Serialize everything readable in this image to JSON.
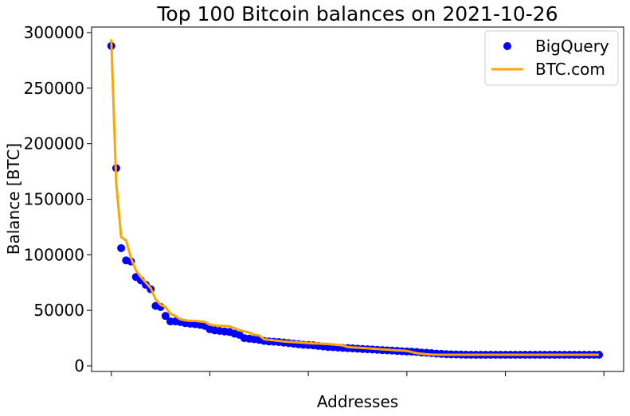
{
  "colors": {
    "bigquery": "#0000ff",
    "btc": "#ffa500",
    "axis": "#000000",
    "background": "#ffffff"
  },
  "chart_data": {
    "type": "scatter",
    "title": "Top 100 Bitcoin balances on 2021-10-26",
    "xlabel": "Addresses",
    "ylabel": "Balance [BTC]",
    "xlim": [
      -4,
      104
    ],
    "ylim": [
      -5000,
      305000
    ],
    "y_ticks": [
      0,
      50000,
      100000,
      150000,
      200000,
      250000,
      300000
    ],
    "y_tick_labels": [
      "0",
      "50000",
      "100000",
      "150000",
      "200000",
      "250000",
      "300000"
    ],
    "x_ticks": [
      0,
      20,
      40,
      60,
      80,
      100
    ],
    "x_tick_labels_visible": false,
    "legend": {
      "position": "top-right",
      "entries": [
        {
          "label": "BigQuery",
          "marker": "circle",
          "color": "#0000ff"
        },
        {
          "label": "BTC.com",
          "marker": "line",
          "color": "#ffa500"
        }
      ]
    },
    "series": [
      {
        "name": "BigQuery",
        "style": "points",
        "x": [
          0,
          1,
          2,
          3,
          4,
          5,
          6,
          7,
          8,
          9,
          10,
          11,
          12,
          13,
          14,
          15,
          16,
          17,
          18,
          19,
          20,
          21,
          22,
          23,
          24,
          25,
          26,
          27,
          28,
          29,
          30,
          31,
          32,
          33,
          34,
          35,
          36,
          37,
          38,
          39,
          40,
          41,
          42,
          43,
          44,
          45,
          46,
          47,
          48,
          49,
          50,
          51,
          52,
          53,
          54,
          55,
          56,
          57,
          58,
          59,
          60,
          61,
          62,
          63,
          64,
          65,
          66,
          67,
          68,
          69,
          70,
          71,
          72,
          73,
          74,
          75,
          76,
          77,
          78,
          79,
          80,
          81,
          82,
          83,
          84,
          85,
          86,
          87,
          88,
          89,
          90,
          91,
          92,
          93,
          94,
          95,
          96,
          97,
          98,
          99
        ],
        "values": [
          288000,
          178000,
          106000,
          95000,
          94000,
          80000,
          77000,
          73000,
          69000,
          54000,
          53000,
          45000,
          40000,
          40000,
          39500,
          38500,
          38000,
          37500,
          37000,
          36000,
          33000,
          32000,
          31500,
          31000,
          30500,
          29000,
          28000,
          25000,
          24500,
          24000,
          23500,
          22500,
          22000,
          21800,
          21500,
          21000,
          20500,
          20000,
          19500,
          19000,
          18800,
          18500,
          18000,
          17500,
          17000,
          16800,
          16500,
          16200,
          16000,
          15800,
          15500,
          15200,
          15000,
          14800,
          14500,
          14200,
          14000,
          13800,
          13500,
          13200,
          13000,
          12800,
          12500,
          12000,
          11800,
          11500,
          11000,
          10800,
          10600,
          10400,
          10300,
          10200,
          10100,
          10050,
          10000,
          10000,
          10000,
          10000,
          10000,
          10000,
          10000,
          10000,
          10000,
          10000,
          10000,
          10000,
          10000,
          10000,
          10000,
          10000,
          10000,
          10000,
          10000,
          10000,
          10000,
          10000,
          10000,
          10000,
          10000,
          10000
        ]
      },
      {
        "name": "BTC.com",
        "style": "line",
        "x": [
          0,
          1,
          2,
          3,
          4,
          5,
          6,
          7,
          8,
          9,
          10,
          11,
          12,
          13,
          14,
          15,
          16,
          17,
          18,
          19,
          20,
          21,
          22,
          23,
          24,
          25,
          26,
          27,
          28,
          29,
          30,
          31,
          32,
          33,
          34,
          35,
          36,
          37,
          38,
          39,
          40,
          41,
          42,
          43,
          44,
          45,
          46,
          47,
          48,
          49,
          50,
          51,
          52,
          53,
          54,
          55,
          56,
          57,
          58,
          59,
          60,
          61,
          62,
          63,
          64,
          65,
          66,
          67,
          68,
          69,
          70,
          71,
          72,
          73,
          74,
          75,
          76,
          77,
          78,
          79,
          80,
          81,
          82,
          83,
          84,
          85,
          86,
          87,
          88,
          89,
          90,
          91,
          92,
          93,
          94,
          95,
          96,
          97,
          98,
          99
        ],
        "values": [
          294000,
          165000,
          116000,
          113000,
          97000,
          86000,
          80000,
          75000,
          70000,
          60000,
          55000,
          53000,
          47000,
          45000,
          42000,
          41000,
          40500,
          40500,
          40000,
          39500,
          37000,
          36500,
          36000,
          36000,
          35500,
          34000,
          32000,
          31000,
          30000,
          28000,
          27500,
          24000,
          23500,
          23000,
          22500,
          22000,
          21700,
          21400,
          21100,
          20800,
          20500,
          20300,
          20100,
          19900,
          19700,
          19300,
          18900,
          18400,
          17000,
          16700,
          16400,
          16100,
          15800,
          15500,
          15200,
          14900,
          14600,
          14300,
          14000,
          13800,
          13500,
          12500,
          11500,
          11000,
          10500,
          10200,
          10000,
          10000,
          10000,
          10000,
          10000,
          10000,
          10000,
          10000,
          10000,
          10000,
          10000,
          10000,
          10000,
          10000,
          10000,
          10000,
          10000,
          10000,
          10000,
          10000,
          10000,
          10000,
          10000,
          10000,
          10000,
          10000,
          10000,
          10000,
          10000,
          10000,
          10000,
          10000,
          10000,
          10000
        ]
      }
    ]
  }
}
